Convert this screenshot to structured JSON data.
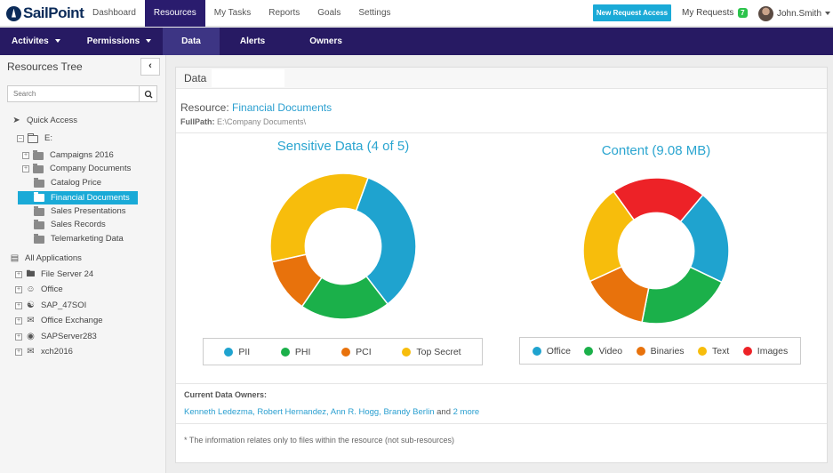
{
  "brand": {
    "logo_text": "SailPoint"
  },
  "topnav": {
    "items": [
      "Dashboard",
      "Resources",
      "My Tasks",
      "Reports",
      "Goals",
      "Settings"
    ],
    "active": "Resources"
  },
  "header": {
    "new_request": "New Request Access",
    "my_requests": "My Requests",
    "my_requests_count": "7",
    "user_name": "John.Smith"
  },
  "subnav": {
    "items": [
      "Activites",
      "Permissions",
      "Data",
      "Alerts",
      "Owners"
    ],
    "active": "Data"
  },
  "sidebar": {
    "title": "Resources Tree",
    "search_placeholder": "Search",
    "quick_access": "Quick Access",
    "drive": "E:",
    "folders": [
      "Campaigns 2016",
      "Company Documents",
      "Catalog Price",
      "Financial Documents",
      "Sales Presentations",
      "Sales Records",
      "Telemarketing Data"
    ],
    "selected_folder": "Financial Documents",
    "all_applications": "All Applications",
    "applications": [
      "File Server 24",
      "Office",
      "SAP_47SOI",
      "Office Exchange",
      "SAPServer283",
      "xch2016"
    ]
  },
  "main": {
    "panel_title": "Data",
    "resource_label": "Resource:",
    "resource_name": "Financial Documents",
    "fullpath_label": "FullPath:",
    "fullpath_value": "E:\\Company Documents\\",
    "owners_label": "Current Data Owners:",
    "owners": "Kenneth Ledezma, Robert Hernandez, Ann R. Hogg, Brandy Berlin",
    "owners_and": "and",
    "owners_more": "2 more",
    "note": "* The information relates only to files within the resource (not sub-resources)"
  },
  "chart_data": [
    {
      "type": "pie",
      "title": "Sensitive Data (4 of 5)",
      "donut": true,
      "categories": [
        "PII",
        "PHI",
        "PCI",
        "Top Secret"
      ],
      "values": [
        34,
        20,
        12,
        34
      ],
      "colors": [
        "#1fa3cf",
        "#1bb04a",
        "#e8720c",
        "#f7bd0c"
      ],
      "legend": "bottom"
    },
    {
      "type": "pie",
      "title": "Content (9.08 MB)",
      "donut": true,
      "categories": [
        "Office",
        "Video",
        "Binaries",
        "Text",
        "Images"
      ],
      "values": [
        21,
        21,
        15,
        22,
        21
      ],
      "colors": [
        "#1fa3cf",
        "#1bb04a",
        "#e8720c",
        "#f7bd0c",
        "#ed2227"
      ],
      "legend": "bottom"
    }
  ]
}
